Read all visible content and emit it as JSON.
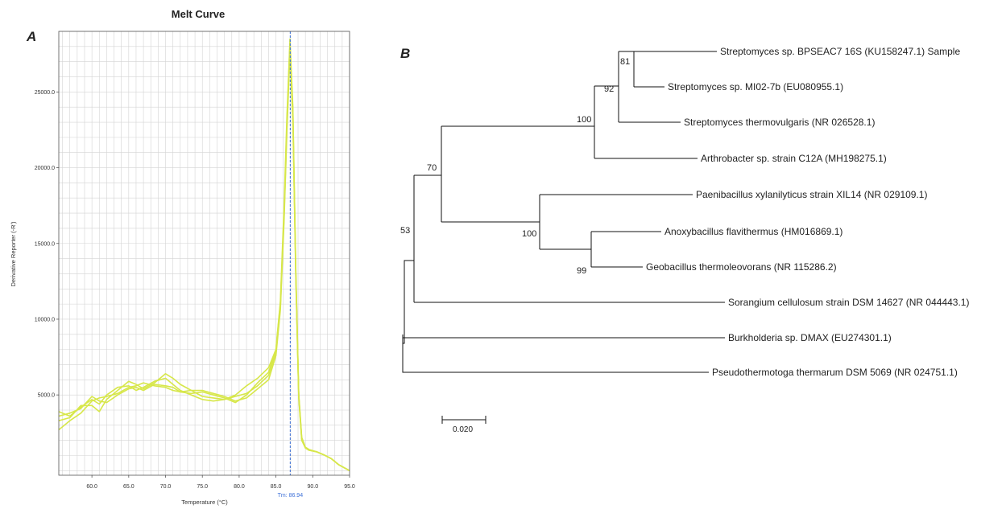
{
  "panel_a": {
    "letter": "A",
    "chart_data": {
      "type": "line",
      "title": "Melt Curve",
      "xlabel": "Temperature (°C)",
      "ylabel": "Derivative Reporter (-R')",
      "xlim": [
        55.5,
        95.0
      ],
      "ylim": [
        -300,
        29000
      ],
      "x_ticks": [
        60.0,
        65.0,
        70.0,
        75.0,
        80.0,
        85.0,
        90.0,
        95.0
      ],
      "x_tick_labels": [
        "60.0",
        "65.0",
        "70.0",
        "75.0",
        "80.0",
        "85.0",
        "90.0",
        "95.0"
      ],
      "y_ticks": [
        5000,
        10000,
        15000,
        20000,
        25000
      ],
      "y_tick_labels": [
        "5000.0",
        "10000.0",
        "15000.0",
        "20000.0",
        "25000.0"
      ],
      "grid": true,
      "line_color": "#d7e74a",
      "marker": {
        "x": 86.94,
        "label": "Tm: 86.94",
        "color": "#3b6fd8"
      },
      "series": [
        {
          "x": [
            55.5,
            57,
            58.5,
            60,
            61,
            62,
            63.5,
            65,
            66,
            67,
            68.5,
            70,
            71,
            72,
            73.5,
            75,
            76.5,
            78,
            79.5,
            81,
            82.5,
            84,
            85,
            85.6,
            86.1,
            86.5,
            86.9,
            87.3,
            87.7,
            88.1,
            88.5,
            89,
            89.5,
            90.5,
            91.5,
            92.5,
            93.5,
            95
          ],
          "values": [
            3900,
            3600,
            4200,
            4700,
            4400,
            5000,
            5500,
            5600,
            5300,
            5500,
            5900,
            6100,
            5700,
            5300,
            5000,
            4700,
            4600,
            4700,
            5000,
            5600,
            6100,
            6800,
            8000,
            11000,
            17000,
            23000,
            28500,
            24000,
            13000,
            5000,
            2100,
            1500,
            1350,
            1250,
            1050,
            800,
            400,
            0
          ]
        },
        {
          "x": [
            55.5,
            57,
            58.5,
            60,
            61,
            62,
            63.5,
            65,
            66,
            67,
            68.5,
            70,
            71,
            72,
            73.5,
            75,
            76.5,
            78,
            79.5,
            81,
            82.5,
            84,
            85,
            85.6,
            86.1,
            86.5,
            86.9,
            87.3,
            87.7,
            88.1,
            88.5,
            89,
            89.5,
            90.5,
            91.5,
            92.5,
            93.5,
            95
          ],
          "values": [
            3600,
            3800,
            4100,
            4900,
            4600,
            4500,
            5000,
            5400,
            5500,
            5300,
            5700,
            5600,
            5500,
            5200,
            5100,
            5200,
            5000,
            4800,
            4500,
            5000,
            5800,
            6500,
            8000,
            11200,
            17500,
            23500,
            28200,
            23500,
            12800,
            4800,
            2000,
            1500,
            1350,
            1250,
            1050,
            800,
            400,
            0
          ]
        },
        {
          "x": [
            55.5,
            57,
            58.5,
            60,
            61,
            62,
            63.5,
            65,
            66,
            67,
            68.5,
            70,
            71,
            72,
            73.5,
            75,
            76.5,
            78,
            79.5,
            81,
            82.5,
            84,
            85,
            85.6,
            86.1,
            86.5,
            86.9,
            87.3,
            87.7,
            88.1,
            88.5,
            89,
            89.5,
            90.5,
            91.5,
            92.5,
            93.5,
            95
          ],
          "values": [
            3300,
            3500,
            4300,
            4300,
            3900,
            4700,
            5300,
            5900,
            5700,
            5400,
            5800,
            6400,
            6100,
            5700,
            5300,
            4900,
            4800,
            4700,
            4900,
            5100,
            5600,
            6300,
            7800,
            10800,
            16800,
            22800,
            28000,
            23800,
            13200,
            5100,
            2200,
            1550,
            1400,
            1250,
            1050,
            800,
            400,
            0
          ]
        },
        {
          "x": [
            55.5,
            57,
            58.5,
            60,
            61,
            62,
            63.5,
            65,
            66,
            67,
            68.5,
            70,
            71,
            72,
            73.5,
            75,
            76.5,
            78,
            79.5,
            81,
            82.5,
            84,
            85,
            85.6,
            86.1,
            86.5,
            86.9,
            87.3,
            87.7,
            88.1,
            88.5,
            89,
            89.5,
            90.5,
            91.5,
            92.5,
            93.5,
            95
          ],
          "values": [
            2700,
            3300,
            3800,
            4600,
            4800,
            4900,
            5100,
            5500,
            5600,
            5800,
            5600,
            5500,
            5300,
            5200,
            5300,
            5300,
            5100,
            4900,
            4600,
            4800,
            5400,
            6000,
            7600,
            10600,
            16500,
            22500,
            27600,
            23200,
            12600,
            4900,
            2100,
            1500,
            1350,
            1250,
            1050,
            800,
            400,
            0
          ]
        }
      ]
    }
  },
  "panel_b": {
    "letter": "B",
    "scale_bar_label": "0.020",
    "tree": {
      "taxa": [
        "Streptomyces sp. BPSEAC7 16S (KU158247.1) Sample",
        "Streptomyces sp. MI02-7b (EU080955.1)",
        "Streptomyces thermovulgaris (NR 026528.1)",
        "Arthrobacter sp. strain C12A (MH198275.1)",
        "Paenibacillus xylanilyticus strain XIL14 (NR 029109.1)",
        "Anoxybacillus flavithermus (HM016869.1)",
        "Geobacillus thermoleovorans (NR 115286.2)",
        "Sorangium cellulosum strain DSM 14627 (NR 044443.1)",
        "Burkholderia sp. DMAX (EU274301.1)",
        "Pseudothermotoga thermarum DSM 5069 (NR 024751.1)"
      ],
      "bootstrap": [
        "81",
        "92",
        "100",
        "70",
        "100",
        "99",
        "53"
      ]
    }
  }
}
